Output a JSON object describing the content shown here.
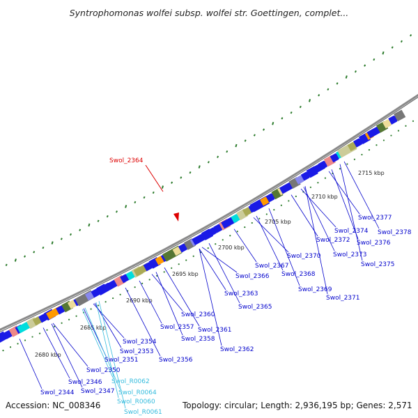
{
  "title": "Syntrophomonas wolfei subsp. wolfei str. Goettingen, complet...",
  "footer": {
    "accession": "Accession: NC_008346",
    "topology": "Topology: circular; Length: 2,936,195 bp; Genes: 2,571"
  },
  "colors": {
    "backbone": "#8a8a8a",
    "gene_blue": "#1a1ae6",
    "label_blue": "#0000cc",
    "label_rna": "#33bbdd",
    "highlight": "#dd0000",
    "gc_tick": "#2a7a2a"
  },
  "highlight": {
    "label": "Swol_2364"
  },
  "kbp_ticks": [
    "2680 kbp",
    "2685 kbp",
    "2690 kbp",
    "2695 kbp",
    "2700 kbp",
    "2705 kbp",
    "2710 kbp",
    "2715 kbp"
  ],
  "gene_labels": [
    {
      "id": "Swol_2344",
      "kind": "gene"
    },
    {
      "id": "Swol_2346",
      "kind": "gene"
    },
    {
      "id": "Swol_2347",
      "kind": "gene"
    },
    {
      "id": "Swol_2350",
      "kind": "gene"
    },
    {
      "id": "Swol_2351",
      "kind": "gene"
    },
    {
      "id": "Swol_2353",
      "kind": "gene"
    },
    {
      "id": "Swol_2354",
      "kind": "gene"
    },
    {
      "id": "Swol_2356",
      "kind": "gene"
    },
    {
      "id": "Swol_2357",
      "kind": "gene"
    },
    {
      "id": "Swol_2358",
      "kind": "gene"
    },
    {
      "id": "Swol_2360",
      "kind": "gene"
    },
    {
      "id": "Swol_2361",
      "kind": "gene"
    },
    {
      "id": "Swol_2362",
      "kind": "gene"
    },
    {
      "id": "Swol_2363",
      "kind": "gene"
    },
    {
      "id": "Swol_2365",
      "kind": "gene"
    },
    {
      "id": "Swol_2366",
      "kind": "gene"
    },
    {
      "id": "Swol_2367",
      "kind": "gene"
    },
    {
      "id": "Swol_2368",
      "kind": "gene"
    },
    {
      "id": "Swol_2369",
      "kind": "gene"
    },
    {
      "id": "Swol_2370",
      "kind": "gene"
    },
    {
      "id": "Swol_2371",
      "kind": "gene"
    },
    {
      "id": "Swol_2372",
      "kind": "gene"
    },
    {
      "id": "Swol_2373",
      "kind": "gene"
    },
    {
      "id": "Swol_2374",
      "kind": "gene"
    },
    {
      "id": "Swol_2375",
      "kind": "gene"
    },
    {
      "id": "Swol_2376",
      "kind": "gene"
    },
    {
      "id": "Swol_2377",
      "kind": "gene"
    },
    {
      "id": "Swol_2378",
      "kind": "gene"
    },
    {
      "id": "Swol_R0060",
      "kind": "rna"
    },
    {
      "id": "Swol_R0061",
      "kind": "rna"
    },
    {
      "id": "Swol_R0062",
      "kind": "rna"
    },
    {
      "id": "Swol_R0064",
      "kind": "rna"
    }
  ]
}
